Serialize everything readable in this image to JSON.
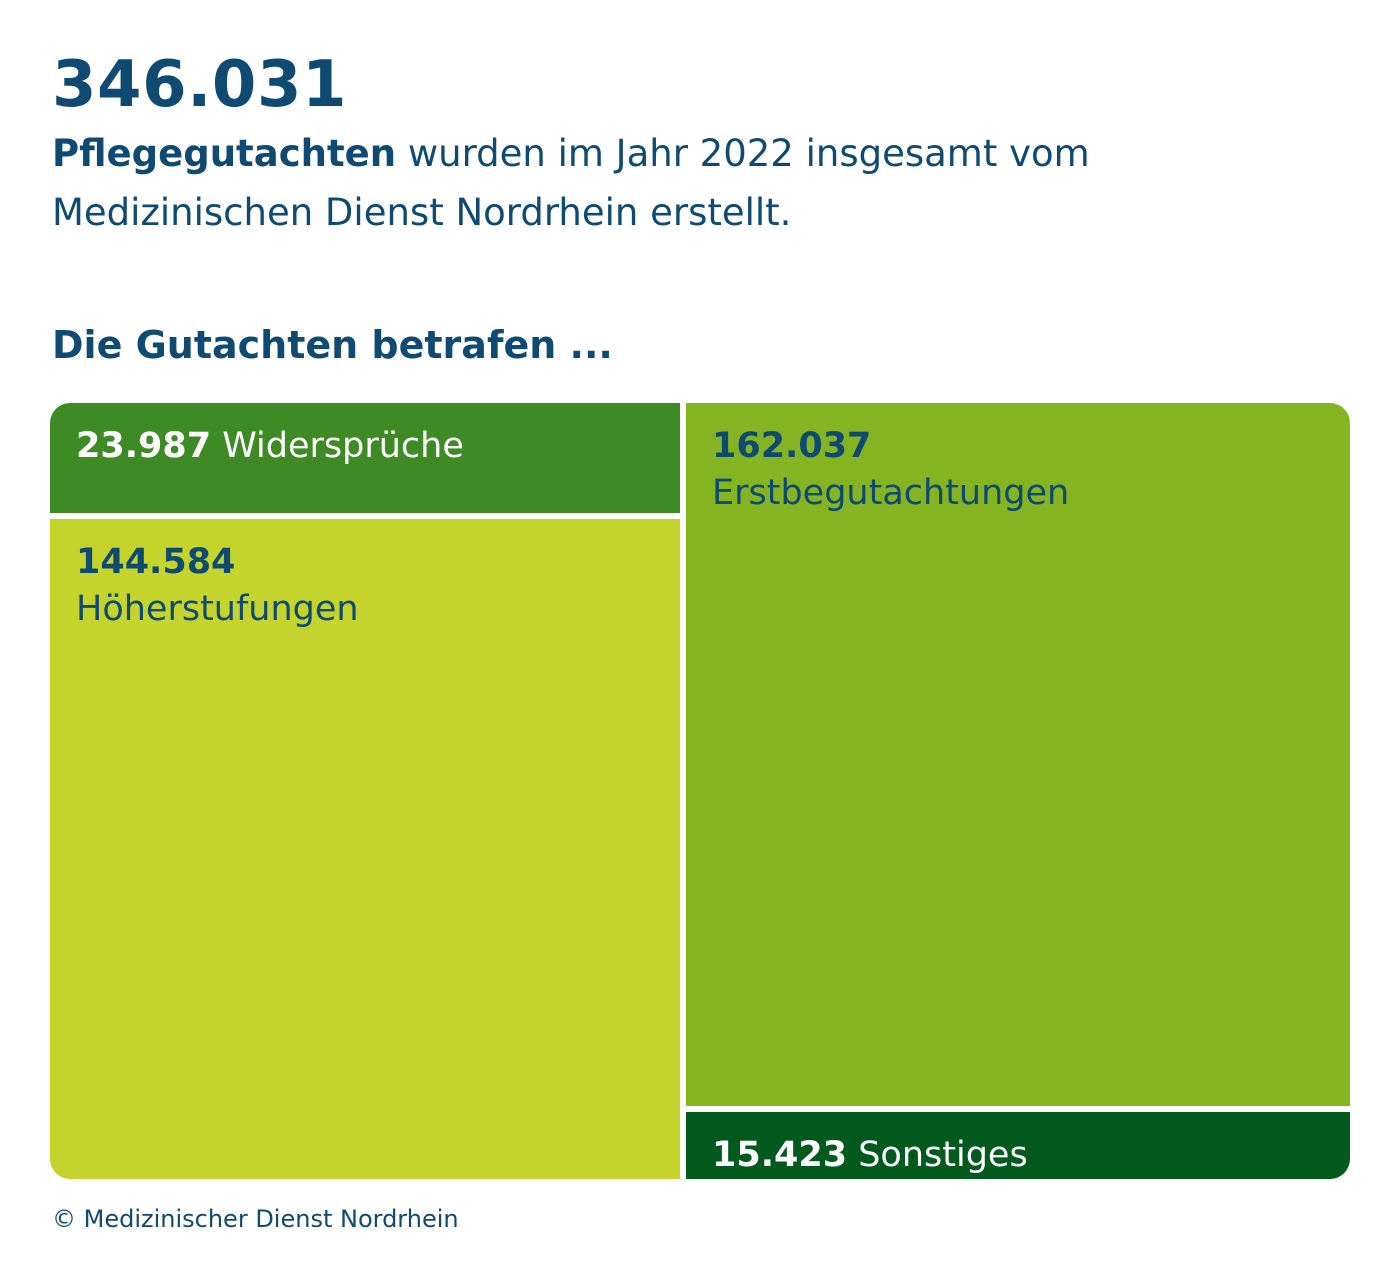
{
  "headline": {
    "total": "346.031",
    "intro_bold": "Pflegegutachten",
    "intro_rest": " wurden im Jahr 2022 insgesamt vom Medizinischen Dienst Nordrhein erstellt."
  },
  "section_title": "Die Gutachten betrafen ...",
  "chart_data": {
    "type": "treemap",
    "total": 346031,
    "items": [
      {
        "key": "widersprueche",
        "value": 23987,
        "value_label": "23.987",
        "name": "Widersprüche",
        "color": "#3e8b26",
        "style": "dark"
      },
      {
        "key": "hoeherstufungen",
        "value": 144584,
        "value_label": "144.584",
        "name": "Höherstufungen",
        "color": "#c5d42c",
        "style": "light"
      },
      {
        "key": "erstbegutachtungen",
        "value": 162037,
        "value_label": "162.037",
        "name": "Erstbegutachtungen",
        "color": "#84b422",
        "style": "light"
      },
      {
        "key": "sonstiges",
        "value": 15423,
        "value_label": "15.423",
        "name": "Sonstiges",
        "color": "#005a1e",
        "style": "dark"
      }
    ]
  },
  "footer": "© Medizinischer Dienst Nordrhein"
}
